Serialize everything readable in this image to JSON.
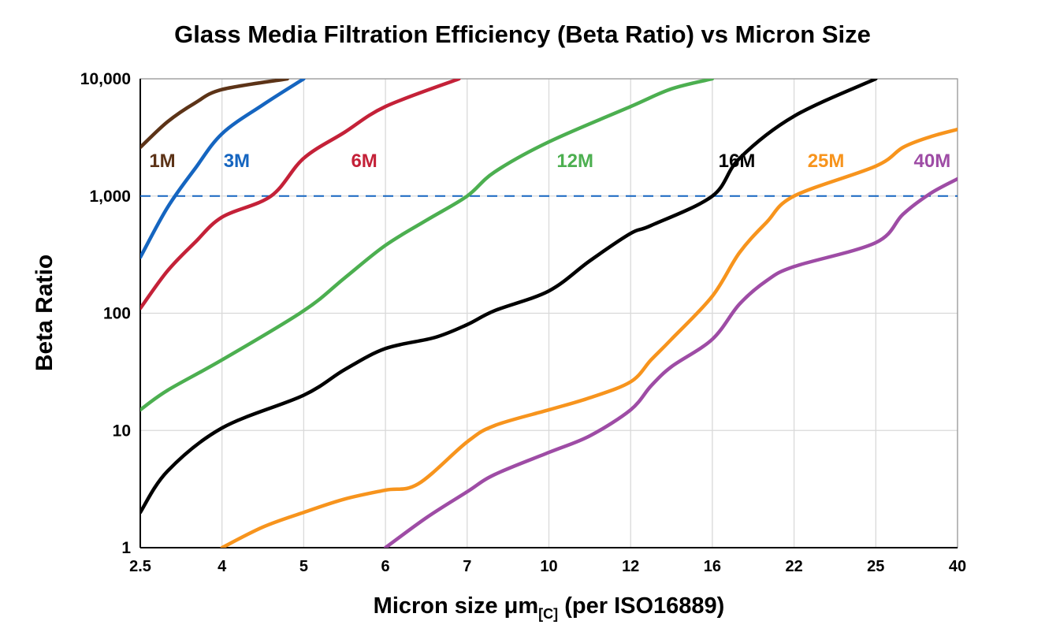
{
  "chart_data": {
    "type": "line",
    "title": "Glass Media Filtration Efficiency (Beta Ratio) vs Micron Size",
    "ylabel": "Beta Ratio",
    "xlabel": "Micron size μm[C] (per ISO16889)",
    "xlabel_parts": {
      "prefix": "Micron size μm",
      "subscript": "[C]",
      "suffix": " (per ISO16889)"
    },
    "x_scale": "piecewise-categorical",
    "y_scale": "log",
    "ylim": [
      1,
      10000
    ],
    "grid": true,
    "x_ticks": [
      2.5,
      4,
      5,
      6,
      7,
      10,
      12,
      16,
      22,
      25,
      40
    ],
    "x_tick_labels": [
      "2.5",
      "4",
      "5",
      "6",
      "7",
      "10",
      "12",
      "16",
      "22",
      "25",
      "40"
    ],
    "y_ticks": [
      1,
      10,
      100,
      1000,
      10000
    ],
    "y_tick_labels": [
      "1",
      "10",
      "100",
      "1,000",
      "10,000"
    ],
    "reference_line": {
      "value": 1000,
      "style": "dashed",
      "color": "#1565C0"
    },
    "series": [
      {
        "name": "1M",
        "color": "#5C3317",
        "label_x_index": 0.27,
        "label_beta": 2000,
        "points": [
          [
            2.5,
            2600
          ],
          [
            3,
            4300
          ],
          [
            3.5,
            6200
          ],
          [
            4,
            8100
          ],
          [
            4.8,
            10000
          ]
        ]
      },
      {
        "name": "3M",
        "color": "#1565C0",
        "label_x_index": 1.18,
        "label_beta": 2000,
        "points": [
          [
            2.5,
            300
          ],
          [
            3,
            800
          ],
          [
            3.5,
            1700
          ],
          [
            4,
            3400
          ],
          [
            4.5,
            6000
          ],
          [
            5,
            10000
          ]
        ]
      },
      {
        "name": "6M",
        "color": "#C42138",
        "label_x_index": 2.74,
        "label_beta": 2000,
        "points": [
          [
            2.5,
            110
          ],
          [
            3,
            230
          ],
          [
            3.5,
            400
          ],
          [
            4,
            660
          ],
          [
            4.6,
            1000
          ],
          [
            5,
            2100
          ],
          [
            5.5,
            3500
          ],
          [
            6,
            5800
          ],
          [
            6.9,
            10000
          ]
        ]
      },
      {
        "name": "12M",
        "color": "#4CAF50",
        "label_x_index": 5.32,
        "label_beta": 2000,
        "points": [
          [
            2.5,
            15
          ],
          [
            3,
            22
          ],
          [
            4,
            40
          ],
          [
            5,
            105
          ],
          [
            5.5,
            200
          ],
          [
            6,
            380
          ],
          [
            6.5,
            620
          ],
          [
            7,
            1000
          ],
          [
            8,
            1600
          ],
          [
            10,
            2900
          ],
          [
            12,
            5800
          ],
          [
            14,
            8200
          ],
          [
            16,
            10000
          ]
        ]
      },
      {
        "name": "16M",
        "color": "#000000",
        "label_x_index": 7.3,
        "label_beta": 2000,
        "points": [
          [
            2.5,
            2
          ],
          [
            3,
            4.5
          ],
          [
            4,
            10.5
          ],
          [
            5,
            20
          ],
          [
            5.5,
            33
          ],
          [
            6,
            50
          ],
          [
            6.6,
            62
          ],
          [
            7,
            80
          ],
          [
            8,
            105
          ],
          [
            10,
            155
          ],
          [
            11,
            280
          ],
          [
            12,
            480
          ],
          [
            13,
            560
          ],
          [
            16,
            1000
          ],
          [
            18,
            2100
          ],
          [
            22,
            4800
          ],
          [
            25,
            10000
          ]
        ]
      },
      {
        "name": "25M",
        "color": "#F7941D",
        "label_x_index": 8.39,
        "label_beta": 2000,
        "points": [
          [
            4,
            1
          ],
          [
            4.5,
            1.5
          ],
          [
            5,
            2
          ],
          [
            5.5,
            2.6
          ],
          [
            6,
            3.1
          ],
          [
            6.4,
            3.5
          ],
          [
            7,
            8
          ],
          [
            8,
            11
          ],
          [
            10,
            15
          ],
          [
            11,
            19
          ],
          [
            12,
            26
          ],
          [
            13,
            40
          ],
          [
            14,
            60
          ],
          [
            16,
            140
          ],
          [
            18,
            330
          ],
          [
            20,
            600
          ],
          [
            22,
            1000
          ],
          [
            25,
            1800
          ],
          [
            30,
            2600
          ],
          [
            35,
            3200
          ],
          [
            40,
            3700
          ]
        ]
      },
      {
        "name": "40M",
        "color": "#9E4CA5",
        "label_x_index": 9.69,
        "label_beta": 2000,
        "points": [
          [
            6,
            1
          ],
          [
            6.5,
            1.8
          ],
          [
            7,
            3
          ],
          [
            8,
            4.2
          ],
          [
            10,
            6.5
          ],
          [
            11,
            9
          ],
          [
            12,
            15
          ],
          [
            13,
            24
          ],
          [
            14,
            35
          ],
          [
            16,
            60
          ],
          [
            18,
            120
          ],
          [
            20,
            190
          ],
          [
            22,
            250
          ],
          [
            25,
            400
          ],
          [
            30,
            700
          ],
          [
            35,
            1050
          ],
          [
            40,
            1400
          ]
        ]
      }
    ],
    "colors": {
      "background": "#FFFFFF",
      "grid": "#D9D9D9",
      "frame": "#9A9A9A",
      "axis": "#000000"
    }
  }
}
